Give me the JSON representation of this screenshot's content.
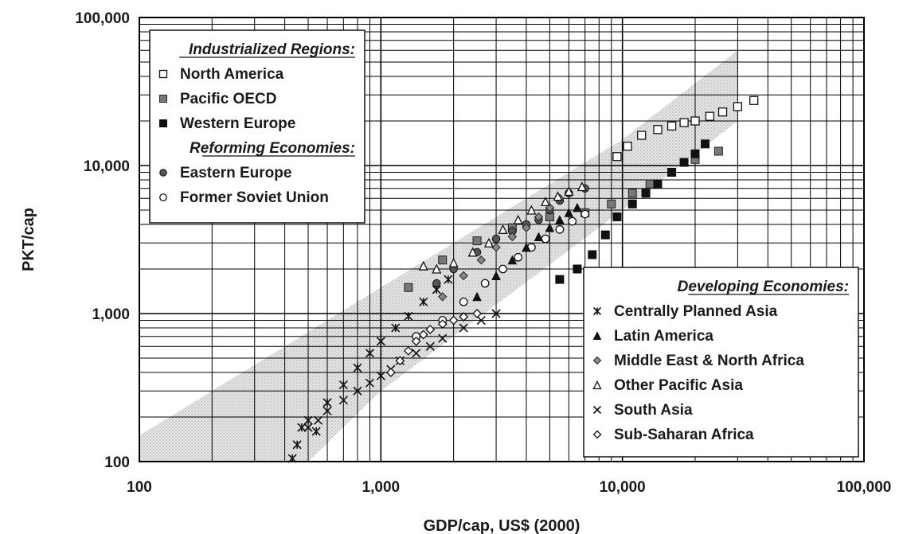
{
  "chart_data": {
    "type": "scatter",
    "title": "",
    "xlabel": "GDP/cap, US$ (2000)",
    "ylabel": "PKT/cap",
    "xscale": "log",
    "yscale": "log",
    "xlim": [
      100,
      100000
    ],
    "ylim": [
      100,
      100000
    ],
    "x_ticks": [
      100,
      1000,
      10000,
      100000
    ],
    "y_ticks": [
      100,
      1000,
      10000,
      100000
    ],
    "x_tick_labels": [
      "100",
      "1,000",
      "10,000",
      "100,000"
    ],
    "y_tick_labels": [
      "100",
      "1,000",
      "10,000",
      "100,000"
    ],
    "grid": true,
    "band": {
      "description_points_upper": [
        [
          100,
          150
        ],
        [
          1000,
          1500
        ],
        [
          10000,
          15000
        ],
        [
          30000,
          60000
        ]
      ],
      "description_points_lower": [
        [
          500,
          100
        ],
        [
          1000,
          300
        ],
        [
          10000,
          5000
        ],
        [
          30000,
          20000
        ]
      ]
    },
    "legends": [
      {
        "placement": "top-left",
        "groups": [
          {
            "heading": "Industrialized Regions:",
            "entries": [
              {
                "label": "North America",
                "marker": "square-open"
              },
              {
                "label": "Pacific OECD",
                "marker": "square-gray"
              },
              {
                "label": "Western Europe",
                "marker": "square-black"
              }
            ]
          },
          {
            "heading": "Reforming Economies:",
            "entries": [
              {
                "label": "Eastern Europe",
                "marker": "circle-black"
              },
              {
                "label": "Former Soviet Union",
                "marker": "circle-open"
              }
            ]
          }
        ]
      },
      {
        "placement": "bottom-right",
        "groups": [
          {
            "heading": "Developing Economies:",
            "entries": [
              {
                "label": "Centrally Planned Asia",
                "marker": "asterisk"
              },
              {
                "label": "Latin America",
                "marker": "triangle-black"
              },
              {
                "label": "Middle East & North Africa",
                "marker": "diamond-gray"
              },
              {
                "label": "Other Pacific Asia",
                "marker": "triangle-open"
              },
              {
                "label": "South Asia",
                "marker": "cross"
              },
              {
                "label": "Sub-Saharan Africa",
                "marker": "diamond-open"
              }
            ]
          }
        ]
      }
    ],
    "series": [
      {
        "name": "North America",
        "marker": "square-open",
        "x": [
          9500,
          10500,
          12000,
          14000,
          16000,
          18000,
          20000,
          23000,
          26000,
          30000,
          35000
        ],
        "y": [
          11500,
          13500,
          16000,
          17500,
          18500,
          19500,
          20000,
          21500,
          23000,
          25000,
          27500
        ]
      },
      {
        "name": "Pacific OECD",
        "marker": "square-gray",
        "x": [
          1300,
          1800,
          2500,
          3500,
          5000,
          7000,
          9000,
          11000,
          13000,
          16000,
          20000,
          25000
        ],
        "y": [
          1500,
          2300,
          3100,
          3800,
          4500,
          4800,
          5500,
          6500,
          7500,
          9000,
          11000,
          12500
        ]
      },
      {
        "name": "Western Europe",
        "marker": "square-black",
        "x": [
          5500,
          6500,
          7500,
          8500,
          9500,
          11000,
          12500,
          14000,
          16000,
          18000,
          20000,
          22000
        ],
        "y": [
          1700,
          2000,
          2500,
          3400,
          4500,
          5500,
          6500,
          7500,
          9000,
          10500,
          12000,
          14000
        ]
      },
      {
        "name": "Eastern Europe",
        "marker": "circle-black",
        "x": [
          1700,
          2000,
          2500,
          3000,
          3500,
          4000,
          4500,
          5000,
          5500,
          6000,
          7000
        ],
        "y": [
          1600,
          2000,
          2600,
          3200,
          3600,
          4000,
          4300,
          5000,
          5800,
          6500,
          7000
        ]
      },
      {
        "name": "Former Soviet Union",
        "marker": "circle-open",
        "x": [
          1400,
          1800,
          2200,
          2700,
          3200,
          3700,
          4200,
          4800,
          5500,
          6200,
          7000
        ],
        "y": [
          700,
          900,
          1200,
          1600,
          2000,
          2400,
          2800,
          3200,
          3700,
          4200,
          4700
        ]
      },
      {
        "name": "Centrally Planned Asia",
        "marker": "asterisk",
        "x": [
          430,
          450,
          470,
          500,
          540,
          600,
          700,
          800,
          900,
          1000,
          1150,
          1300,
          1500,
          1700,
          1900
        ],
        "y": [
          105,
          130,
          170,
          190,
          160,
          250,
          330,
          430,
          540,
          650,
          800,
          960,
          1200,
          1450,
          1700
        ]
      },
      {
        "name": "Latin America",
        "marker": "triangle-black",
        "x": [
          2500,
          3000,
          3500,
          4000,
          4500,
          5000,
          5500,
          6000,
          6500
        ],
        "y": [
          1300,
          1800,
          2300,
          2800,
          3300,
          3800,
          4300,
          4800,
          5200
        ]
      },
      {
        "name": "Middle East & North Africa",
        "marker": "diamond-gray",
        "x": [
          1800,
          2200,
          2600,
          3000,
          3500,
          4000,
          4500,
          5000,
          5500
        ],
        "y": [
          1300,
          1800,
          2300,
          2800,
          3300,
          3800,
          4500,
          5200,
          6000
        ]
      },
      {
        "name": "Other Pacific Asia",
        "marker": "triangle-open",
        "x": [
          1500,
          1700,
          2000,
          2400,
          2800,
          3200,
          3700,
          4200,
          4800,
          5400,
          6000,
          6800
        ],
        "y": [
          2100,
          2000,
          2200,
          2600,
          3000,
          3700,
          4300,
          5000,
          5700,
          6200,
          6700,
          7200
        ]
      },
      {
        "name": "South Asia",
        "marker": "cross",
        "x": [
          500,
          550,
          600,
          700,
          800,
          900,
          1000,
          1100,
          1200,
          1400,
          1600,
          1800,
          2200,
          2600,
          3000
        ],
        "y": [
          170,
          190,
          220,
          260,
          300,
          340,
          380,
          420,
          480,
          540,
          600,
          680,
          800,
          900,
          1000
        ]
      },
      {
        "name": "Sub-Saharan Africa",
        "marker": "diamond-open",
        "x": [
          1100,
          1200,
          1300,
          1400,
          1500,
          1600,
          1800,
          2000,
          2200,
          2500
        ],
        "y": [
          400,
          480,
          560,
          650,
          720,
          780,
          850,
          900,
          950,
          1000
        ]
      }
    ]
  }
}
